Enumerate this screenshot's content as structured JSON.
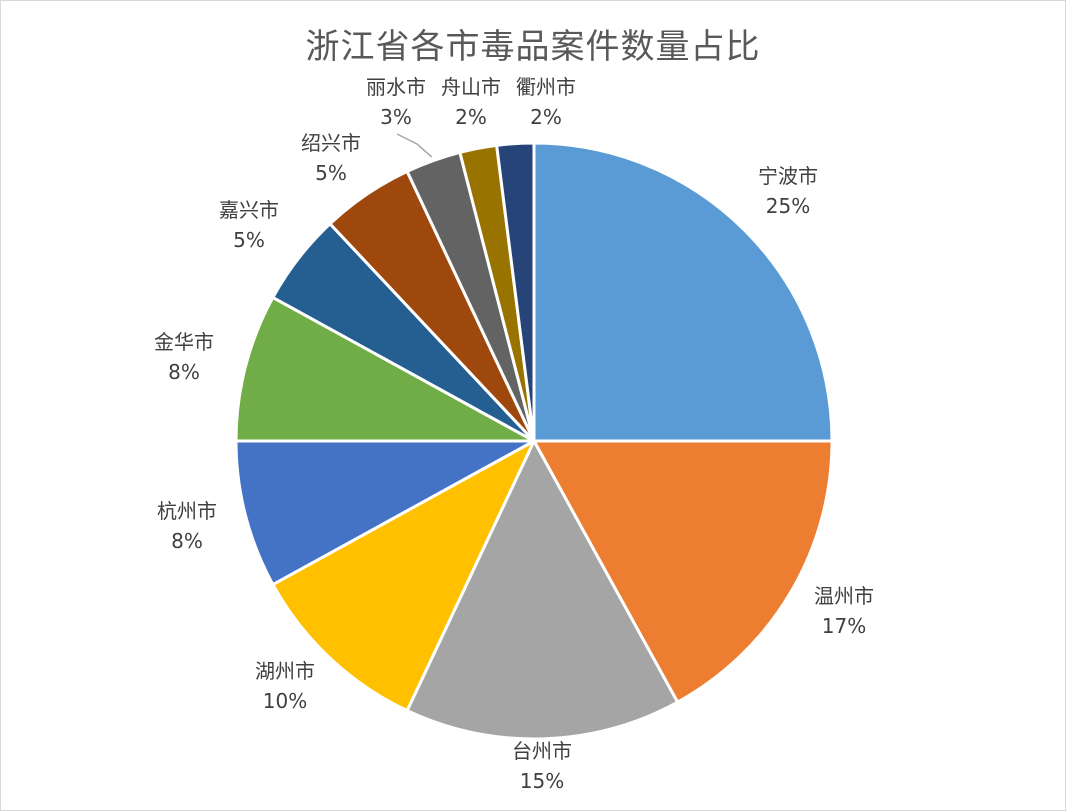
{
  "chart_data": {
    "type": "pie",
    "title": "浙江省各市毒品案件数量占比",
    "slices": [
      {
        "label": "宁波市",
        "percent_label": "25%",
        "value": 25,
        "color": "#5B9BD5"
      },
      {
        "label": "温州市",
        "percent_label": "17%",
        "value": 17,
        "color": "#ED7D31"
      },
      {
        "label": "台州市",
        "percent_label": "15%",
        "value": 15,
        "color": "#A5A5A5"
      },
      {
        "label": "湖州市",
        "percent_label": "10%",
        "value": 10,
        "color": "#FFC000"
      },
      {
        "label": "杭州市",
        "percent_label": "8%",
        "value": 8,
        "color": "#4472C4"
      },
      {
        "label": "金华市",
        "percent_label": "8%",
        "value": 8,
        "color": "#70AD47"
      },
      {
        "label": "嘉兴市",
        "percent_label": "5%",
        "value": 5,
        "color": "#255E91"
      },
      {
        "label": "绍兴市",
        "percent_label": "5%",
        "value": 5,
        "color": "#9E480E"
      },
      {
        "label": "丽水市",
        "percent_label": "3%",
        "value": 3,
        "color": "#636363"
      },
      {
        "label": "舟山市",
        "percent_label": "2%",
        "value": 2,
        "color": "#997300"
      },
      {
        "label": "衢州市",
        "percent_label": "2%",
        "value": 2,
        "color": "#264478"
      }
    ],
    "legend": "none",
    "start_angle_deg": 0,
    "direction": "clockwise"
  }
}
